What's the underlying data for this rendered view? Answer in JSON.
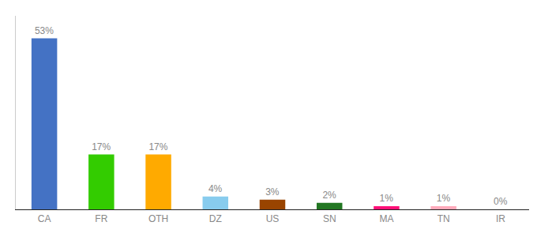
{
  "chart_data": {
    "type": "bar",
    "categories": [
      "CA",
      "FR",
      "OTH",
      "DZ",
      "US",
      "SN",
      "MA",
      "TN",
      "IR"
    ],
    "values": [
      53,
      17,
      17,
      4,
      3,
      2,
      1,
      1,
      0
    ],
    "value_labels": [
      "53%",
      "17%",
      "17%",
      "4%",
      "3%",
      "2%",
      "1%",
      "1%",
      "0%"
    ],
    "colors": [
      "#4472c4",
      "#33cc00",
      "#ffaa00",
      "#88ccee",
      "#994400",
      "#227722",
      "#ff1177",
      "#ffaabb",
      "#bbbbbb"
    ],
    "ylim": [
      0,
      60
    ],
    "grid": false,
    "data_labels": true,
    "tick_labels": "x"
  }
}
